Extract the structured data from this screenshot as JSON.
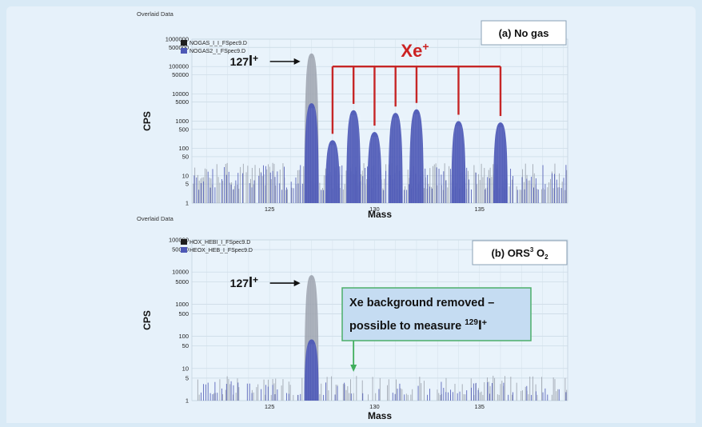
{
  "chart_data": [
    {
      "type": "bar",
      "panel_label": "(a) No gas",
      "header": "Overlaid Data",
      "xlabel": "Mass",
      "ylabel": "CPS",
      "y_scale": "log",
      "xlim": [
        121.3,
        139.2
      ],
      "ylim": [
        1,
        1000000
      ],
      "y_ticks": [
        "1000000",
        "500000",
        "100000",
        "50000",
        "10000",
        "5000",
        "1000",
        "500",
        "100",
        "50",
        "10",
        "5",
        "1"
      ],
      "x_ticks": [
        "125",
        "130",
        "135"
      ],
      "legend": [
        {
          "name": "NOGAS_I_I_FSpec9.D",
          "color": "#1e1e1e"
        },
        {
          "name": "NOGAS2_I_FSpec9.D",
          "color": "#4d58b6"
        }
      ],
      "series": [
        {
          "name": "NOGAS_I_I_FSpec9.D",
          "color": "#9aa0ab",
          "peaks": [
            {
              "mass": 127,
              "cps": 300000
            }
          ],
          "noise": {
            "from": 121.3,
            "to": 139.2,
            "low": 3,
            "high": 30
          }
        },
        {
          "name": "NOGAS2_I_FSpec9.D",
          "color": "#4d58b6",
          "peaks": [
            {
              "mass": 127,
              "cps": 4500
            },
            {
              "mass": 128,
              "cps": 200
            },
            {
              "mass": 129,
              "cps": 2500
            },
            {
              "mass": 130,
              "cps": 400
            },
            {
              "mass": 131,
              "cps": 2000
            },
            {
              "mass": 132,
              "cps": 2700
            },
            {
              "mass": 134,
              "cps": 1000
            },
            {
              "mass": 136,
              "cps": 900
            }
          ],
          "noise": {
            "from": 121.3,
            "to": 139.2,
            "low": 3,
            "high": 25
          }
        }
      ],
      "annotations": [
        {
          "text": "127",
          "suffix": "I",
          "sup": "+",
          "points_to_mass": 127
        },
        {
          "text": "Xe",
          "sup": "+",
          "color": "#cc2222",
          "bracket_masses": [
            128,
            129,
            130,
            131,
            132,
            134,
            136
          ],
          "bracket_level": 100000
        }
      ]
    },
    {
      "type": "bar",
      "panel_label": "(b) ORS",
      "panel_label_sup": "3",
      "panel_label_tail": " O",
      "panel_label_sub": "2",
      "header": "Overlaid Data",
      "xlabel": "Mass",
      "ylabel": "CPS",
      "y_scale": "log",
      "xlim": [
        121.3,
        139.2
      ],
      "ylim": [
        1,
        100000
      ],
      "y_ticks": [
        "100000",
        "50000",
        "10000",
        "5000",
        "1000",
        "500",
        "100",
        "50",
        "10",
        "5",
        "1"
      ],
      "x_ticks": [
        "125",
        "130",
        "135"
      ],
      "legend": [
        {
          "name": "HOX_HEBI_I_FSpec9.D",
          "color": "#1e1e1e"
        },
        {
          "name": "HEOX_HEB_I_FSpec9.D",
          "color": "#4d58b6"
        }
      ],
      "series": [
        {
          "name": "HOX_HEBI_I_FSpec9.D",
          "color": "#9aa0ab",
          "peaks": [
            {
              "mass": 127,
              "cps": 8000
            }
          ],
          "noise": {
            "from": 121.3,
            "to": 139.2,
            "low": 1.5,
            "high": 6
          }
        },
        {
          "name": "HEOX_HEB_I_FSpec9.D",
          "color": "#4d58b6",
          "peaks": [
            {
              "mass": 127,
              "cps": 80
            }
          ],
          "noise": {
            "from": 121.3,
            "to": 139.2,
            "low": 1.5,
            "high": 4
          }
        }
      ],
      "annotations": [
        {
          "text": "127",
          "suffix": "I",
          "sup": "+",
          "points_to_mass": 127
        },
        {
          "line1": "Xe background removed –",
          "line2": "possible to measure ",
          "line2_sup": "129",
          "line2_tail": "I",
          "line2_tail_sup": "+",
          "points_to_mass": 129
        }
      ]
    }
  ]
}
